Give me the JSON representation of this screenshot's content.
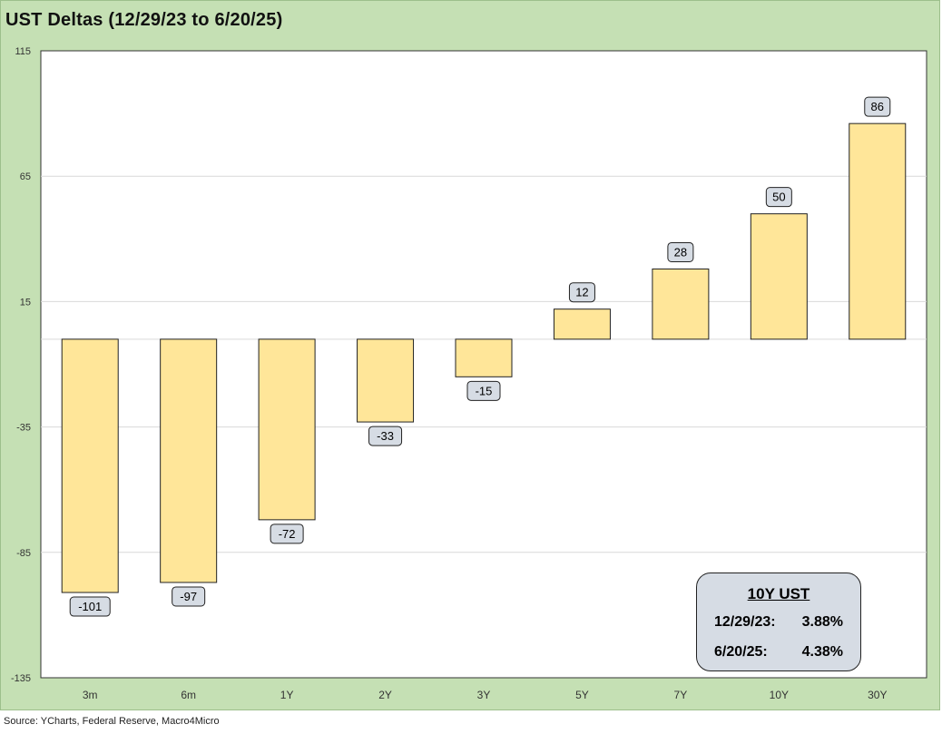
{
  "title": "UST Deltas (12/29/23 to 6/20/25)",
  "source": "Source: YCharts, Federal Reserve, Macro4Micro",
  "chart_data": {
    "type": "bar",
    "title": "UST Deltas (12/29/23 to 6/20/25)",
    "categories": [
      "3m",
      "6m",
      "1Y",
      "2Y",
      "3Y",
      "5Y",
      "7Y",
      "10Y",
      "30Y"
    ],
    "values": [
      -101,
      -97,
      -72,
      -33,
      -15,
      12,
      28,
      50,
      86
    ],
    "data_labels": [
      "-101",
      "-97",
      "-72",
      "-33",
      "-15",
      "12",
      "28",
      "50",
      "86"
    ],
    "ylim": [
      -135,
      115
    ],
    "yticks": [
      115,
      65,
      15,
      -35,
      -85,
      -135
    ],
    "grid": true,
    "bar_color": "#ffe699",
    "bar_edge_color": "#222222",
    "label_box_color": "#d6dce4"
  },
  "info_box": {
    "title": "10Y UST",
    "rows": [
      {
        "label": "12/29/23:",
        "value": "3.88%"
      },
      {
        "label": "6/20/25:",
        "value": "4.38%"
      }
    ]
  }
}
